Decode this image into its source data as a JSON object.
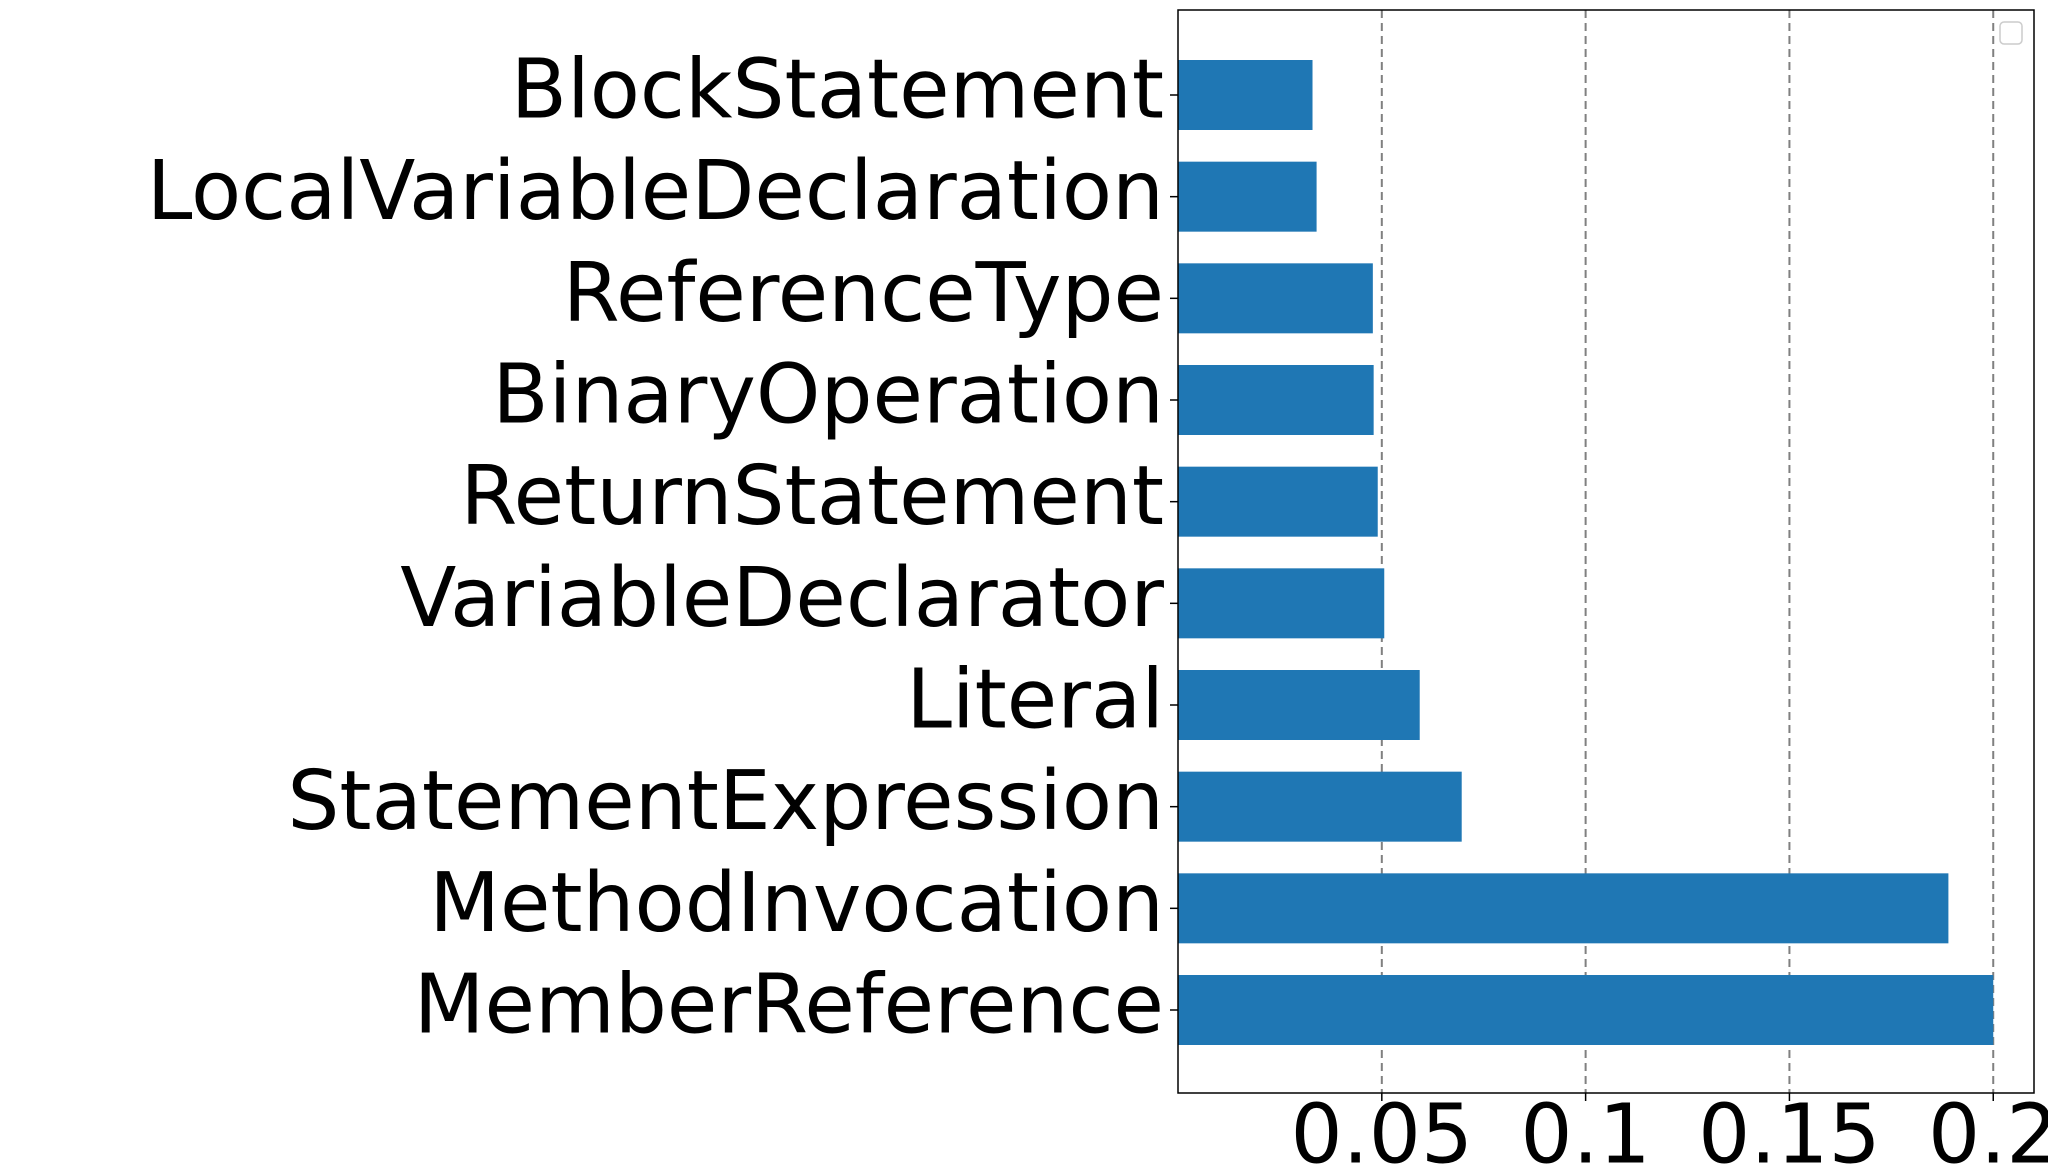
{
  "chart_data": {
    "type": "barh",
    "categories": [
      "BlockStatement",
      "LocalVariableDeclaration",
      "ReferenceType",
      "BinaryOperation",
      "ReturnStatement",
      "VariableDeclarator",
      "Literal",
      "StatementExpression",
      "MethodInvocation",
      "MemberReference"
    ],
    "values": [
      0.033,
      0.034,
      0.0478,
      0.048,
      0.049,
      0.0506,
      0.0593,
      0.0696,
      0.189,
      0.2
    ],
    "color": "#1f77b4",
    "xlim": [
      0,
      0.21
    ],
    "xticks": [
      0.05,
      0.1,
      0.15,
      0.2
    ],
    "grid": true
  }
}
